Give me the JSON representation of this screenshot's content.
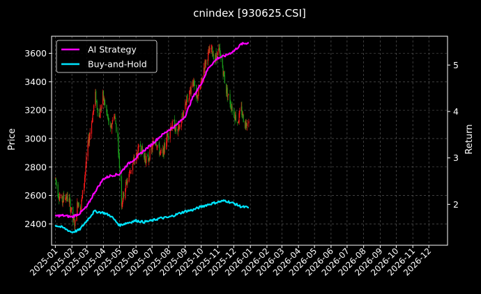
{
  "chart_data": {
    "type": "candlestick+line",
    "title": "cnindex [930625.CSI]",
    "ylabel_left": "Price",
    "ylabel_right": "Return",
    "left_axis": {
      "range": [
        2250,
        3720
      ],
      "ticks": [
        2400,
        2600,
        2800,
        3000,
        3200,
        3400,
        3600
      ]
    },
    "right_axis": {
      "range": [
        1.12,
        5.62
      ],
      "ticks": [
        2,
        3,
        4,
        5
      ]
    },
    "x_axis": {
      "range": [
        "2024-12-25",
        "2027-01-05"
      ],
      "ticks": [
        "2025-01",
        "2025-02",
        "2025-03",
        "2025-04",
        "2025-05",
        "2025-06",
        "2025-07",
        "2025-08",
        "2025-09",
        "2025-10",
        "2025-11",
        "2025-12",
        "2026-01",
        "2026-02",
        "2026-03",
        "2026-04",
        "2026-05",
        "2026-06",
        "2026-07",
        "2026-08",
        "2026-09",
        "2026-10",
        "2026-11",
        "2026-12"
      ]
    },
    "grid": true,
    "legend": {
      "position": "top-left",
      "entries": [
        {
          "name": "AI Strategy",
          "color": "#ff00ff"
        },
        {
          "name": "Buy-and-Hold",
          "color": "#00e5ff"
        }
      ]
    },
    "candle_colors": {
      "up": "#ff1a1a",
      "down": "#1aa01a"
    },
    "price_path": [
      [
        "2025-01-01",
        2720
      ],
      [
        "2025-01-06",
        2620
      ],
      [
        "2025-01-13",
        2560
      ],
      [
        "2025-01-20",
        2600
      ],
      [
        "2025-01-27",
        2560
      ],
      [
        "2025-02-03",
        2430
      ],
      [
        "2025-02-07",
        2400
      ],
      [
        "2025-02-12",
        2560
      ],
      [
        "2025-02-18",
        2520
      ],
      [
        "2025-02-24",
        2700
      ],
      [
        "2025-03-03",
        2950
      ],
      [
        "2025-03-10",
        3120
      ],
      [
        "2025-03-17",
        3300
      ],
      [
        "2025-03-24",
        3150
      ],
      [
        "2025-03-31",
        3300
      ],
      [
        "2025-04-07",
        3180
      ],
      [
        "2025-04-14",
        3050
      ],
      [
        "2025-04-21",
        3180
      ],
      [
        "2025-04-28",
        3000
      ],
      [
        "2025-05-05",
        2550
      ],
      [
        "2025-05-12",
        2660
      ],
      [
        "2025-05-19",
        2750
      ],
      [
        "2025-05-26",
        2820
      ],
      [
        "2025-06-02",
        2880
      ],
      [
        "2025-06-09",
        2950
      ],
      [
        "2025-06-16",
        2870
      ],
      [
        "2025-06-23",
        2850
      ],
      [
        "2025-06-30",
        2920
      ],
      [
        "2025-07-07",
        3000
      ],
      [
        "2025-07-14",
        2920
      ],
      [
        "2025-07-21",
        2880
      ],
      [
        "2025-07-28",
        3000
      ],
      [
        "2025-08-04",
        3080
      ],
      [
        "2025-08-11",
        3100
      ],
      [
        "2025-08-18",
        3040
      ],
      [
        "2025-08-25",
        3120
      ],
      [
        "2025-09-01",
        3250
      ],
      [
        "2025-09-08",
        3300
      ],
      [
        "2025-09-15",
        3420
      ],
      [
        "2025-09-22",
        3280
      ],
      [
        "2025-09-29",
        3350
      ],
      [
        "2025-10-06",
        3500
      ],
      [
        "2025-10-13",
        3580
      ],
      [
        "2025-10-20",
        3630
      ],
      [
        "2025-10-27",
        3560
      ],
      [
        "2025-11-03",
        3620
      ],
      [
        "2025-11-10",
        3500
      ],
      [
        "2025-11-17",
        3340
      ],
      [
        "2025-11-24",
        3260
      ],
      [
        "2025-12-01",
        3180
      ],
      [
        "2025-12-08",
        3120
      ],
      [
        "2025-12-15",
        3200
      ],
      [
        "2025-12-22",
        3100
      ],
      [
        "2025-12-29",
        3150
      ]
    ],
    "series": [
      {
        "name": "AI Strategy",
        "color": "#ff00ff",
        "points": [
          [
            "2025-01-01",
            1.75
          ],
          [
            "2025-01-15",
            1.76
          ],
          [
            "2025-02-01",
            1.73
          ],
          [
            "2025-02-15",
            1.8
          ],
          [
            "2025-03-01",
            1.95
          ],
          [
            "2025-03-15",
            2.25
          ],
          [
            "2025-04-01",
            2.55
          ],
          [
            "2025-04-15",
            2.62
          ],
          [
            "2025-05-01",
            2.65
          ],
          [
            "2025-05-15",
            2.85
          ],
          [
            "2025-06-01",
            3.0
          ],
          [
            "2025-06-15",
            3.15
          ],
          [
            "2025-07-01",
            3.3
          ],
          [
            "2025-07-15",
            3.45
          ],
          [
            "2025-08-01",
            3.6
          ],
          [
            "2025-08-15",
            3.7
          ],
          [
            "2025-09-01",
            3.9
          ],
          [
            "2025-09-15",
            4.3
          ],
          [
            "2025-10-01",
            4.6
          ],
          [
            "2025-10-15",
            4.95
          ],
          [
            "2025-11-01",
            5.15
          ],
          [
            "2025-11-15",
            5.2
          ],
          [
            "2025-12-01",
            5.3
          ],
          [
            "2025-12-15",
            5.45
          ],
          [
            "2025-12-29",
            5.48
          ]
        ]
      },
      {
        "name": "Buy-and-Hold",
        "color": "#00e5ff",
        "points": [
          [
            "2025-01-01",
            1.55
          ],
          [
            "2025-01-15",
            1.5
          ],
          [
            "2025-02-01",
            1.4
          ],
          [
            "2025-02-15",
            1.45
          ],
          [
            "2025-03-01",
            1.65
          ],
          [
            "2025-03-15",
            1.85
          ],
          [
            "2025-04-01",
            1.82
          ],
          [
            "2025-04-15",
            1.75
          ],
          [
            "2025-05-01",
            1.55
          ],
          [
            "2025-05-15",
            1.6
          ],
          [
            "2025-06-01",
            1.65
          ],
          [
            "2025-06-15",
            1.62
          ],
          [
            "2025-07-01",
            1.65
          ],
          [
            "2025-07-15",
            1.7
          ],
          [
            "2025-08-01",
            1.72
          ],
          [
            "2025-08-15",
            1.78
          ],
          [
            "2025-09-01",
            1.85
          ],
          [
            "2025-09-15",
            1.88
          ],
          [
            "2025-10-01",
            1.95
          ],
          [
            "2025-10-15",
            2.0
          ],
          [
            "2025-11-01",
            2.05
          ],
          [
            "2025-11-15",
            2.08
          ],
          [
            "2025-12-01",
            2.02
          ],
          [
            "2025-12-15",
            1.95
          ],
          [
            "2025-12-29",
            1.93
          ]
        ]
      }
    ]
  }
}
